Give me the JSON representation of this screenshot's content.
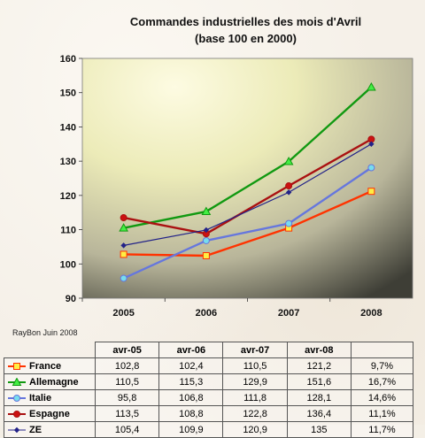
{
  "chart_data": {
    "type": "line",
    "title": "Commandes industrielles des mois d'Avril",
    "subtitle": "(base 100 en 2000)",
    "x": [
      "2005",
      "2006",
      "2007",
      "2008"
    ],
    "ylim": [
      90,
      160
    ],
    "yticks": [
      "90",
      "100",
      "110",
      "120",
      "130",
      "140",
      "150",
      "160"
    ],
    "grid": false,
    "legend": "table-below",
    "series": [
      {
        "name": "France",
        "values": [
          102.8,
          102.4,
          110.5,
          121.2
        ],
        "color": "#ff3300",
        "marker": "square",
        "marker_fill": "#ffee44"
      },
      {
        "name": "Allemagne",
        "values": [
          110.5,
          115.3,
          129.9,
          151.6
        ],
        "color": "#119911",
        "marker": "triangle",
        "marker_fill": "#44ee44"
      },
      {
        "name": "Italie",
        "values": [
          95.8,
          106.8,
          111.8,
          128.1
        ],
        "color": "#6677dd",
        "marker": "circle",
        "marker_fill": "#77ddee"
      },
      {
        "name": "Espagne",
        "values": [
          113.5,
          108.8,
          122.8,
          136.4
        ],
        "color": "#aa1111",
        "marker": "circle",
        "marker_fill": "#cc1111"
      },
      {
        "name": "ZE",
        "values": [
          105.4,
          109.9,
          120.9,
          135
        ],
        "color": "#222288",
        "marker": "diamond",
        "marker_fill": "#222288"
      }
    ]
  },
  "table": {
    "note": "RayBon Juin 2008",
    "headers": [
      "avr-05",
      "avr-06",
      "avr-07",
      "avr-08",
      ""
    ],
    "rows": [
      {
        "label": "France",
        "cells": [
          "102,8",
          "102,4",
          "110,5",
          "121,2",
          "9,7%"
        ]
      },
      {
        "label": "Allemagne",
        "cells": [
          "110,5",
          "115,3",
          "129,9",
          "151,6",
          "16,7%"
        ]
      },
      {
        "label": "Italie",
        "cells": [
          "95,8",
          "106,8",
          "111,8",
          "128,1",
          "14,6%"
        ]
      },
      {
        "label": "Espagne",
        "cells": [
          "113,5",
          "108,8",
          "122,8",
          "136,4",
          "11,1%"
        ]
      },
      {
        "label": "ZE",
        "cells": [
          "105,4",
          "109,9",
          "120,9",
          "135",
          "11,7%"
        ]
      }
    ]
  }
}
